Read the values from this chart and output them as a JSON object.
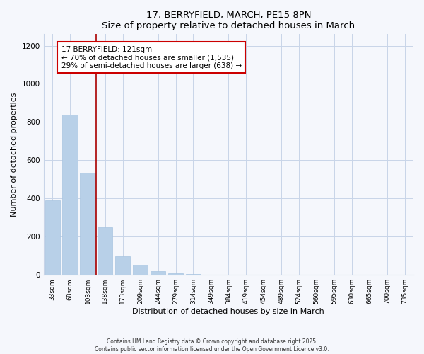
{
  "title": "17, BERRYFIELD, MARCH, PE15 8PN",
  "subtitle": "Size of property relative to detached houses in March",
  "xlabel": "Distribution of detached houses by size in March",
  "ylabel": "Number of detached properties",
  "bar_labels": [
    "33sqm",
    "68sqm",
    "103sqm",
    "138sqm",
    "173sqm",
    "209sqm",
    "244sqm",
    "279sqm",
    "314sqm",
    "349sqm",
    "384sqm",
    "419sqm",
    "454sqm",
    "489sqm",
    "524sqm",
    "560sqm",
    "595sqm",
    "630sqm",
    "665sqm",
    "700sqm",
    "735sqm"
  ],
  "bar_values": [
    390,
    840,
    535,
    248,
    98,
    52,
    18,
    8,
    3,
    1,
    0,
    0,
    0,
    0,
    0,
    0,
    0,
    0,
    0,
    0,
    0
  ],
  "bar_color": "#b8d0e8",
  "bar_edge_color": "#a8c4e0",
  "vline_color": "#aa0000",
  "annotation_title": "17 BERRYFIELD: 121sqm",
  "annotation_line1": "← 70% of detached houses are smaller (1,535)",
  "annotation_line2": "29% of semi-detached houses are larger (638) →",
  "annotation_box_edgecolor": "#cc0000",
  "ylim_max": 1260,
  "yticks": [
    0,
    200,
    400,
    600,
    800,
    1000,
    1200
  ],
  "footer1": "Contains HM Land Registry data © Crown copyright and database right 2025.",
  "footer2": "Contains public sector information licensed under the Open Government Licence v3.0.",
  "bg_color": "#f5f7fc",
  "grid_color": "#c8d4e8"
}
